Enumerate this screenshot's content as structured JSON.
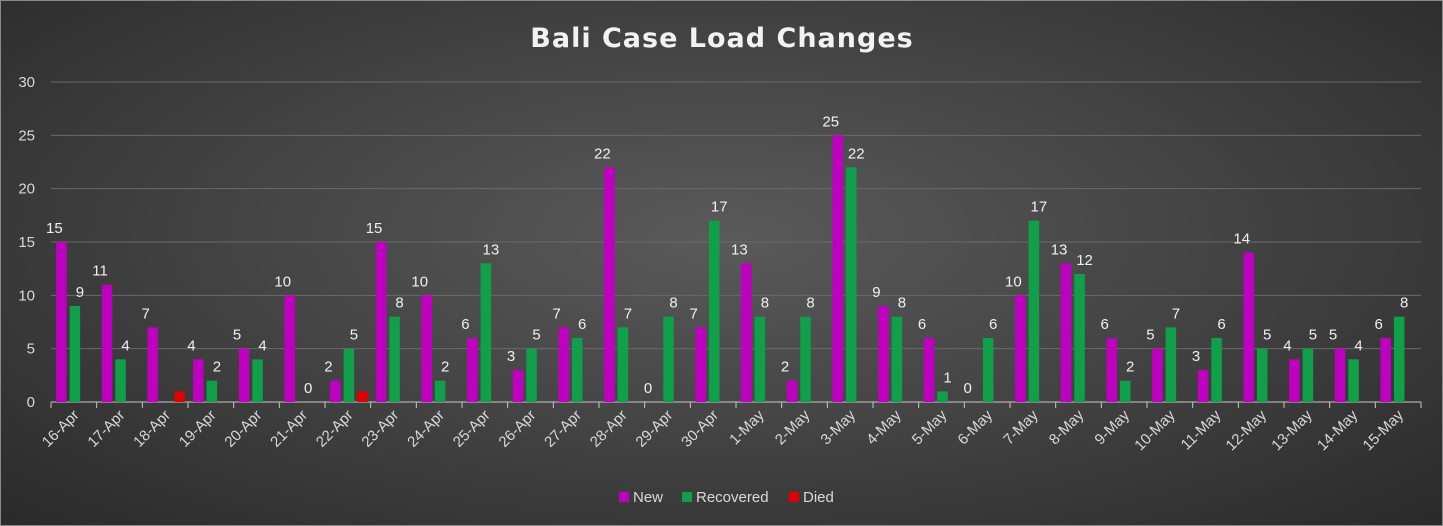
{
  "chart_data": {
    "type": "bar",
    "title": "Bali Case Load Changes",
    "xlabel": "",
    "ylabel": "",
    "ylim": [
      0,
      30
    ],
    "yticks": [
      0,
      5,
      10,
      15,
      20,
      25,
      30
    ],
    "grid": true,
    "legend_position": "bottom",
    "categories": [
      "16-Apr",
      "17-Apr",
      "18-Apr",
      "19-Apr",
      "20-Apr",
      "21-Apr",
      "22-Apr",
      "23-Apr",
      "24-Apr",
      "25-Apr",
      "26-Apr",
      "27-Apr",
      "28-Apr",
      "29-Apr",
      "30-Apr",
      "1-May",
      "2-May",
      "3-May",
      "4-May",
      "5-May",
      "6-May",
      "7-May",
      "8-May",
      "9-May",
      "10-May",
      "11-May",
      "12-May",
      "13-May",
      "14-May",
      "15-May"
    ],
    "series": [
      {
        "name": "New",
        "color": "#c000c0",
        "values": [
          15,
          11,
          7,
          4,
          5,
          10,
          2,
          15,
          10,
          6,
          3,
          7,
          22,
          0,
          7,
          13,
          2,
          25,
          9,
          6,
          0,
          10,
          13,
          6,
          5,
          3,
          14,
          4,
          5,
          6
        ],
        "labeled": [
          true,
          true,
          true,
          true,
          true,
          true,
          true,
          true,
          true,
          true,
          true,
          true,
          true,
          true,
          true,
          true,
          true,
          true,
          true,
          true,
          true,
          true,
          true,
          true,
          true,
          true,
          true,
          true,
          true,
          true
        ]
      },
      {
        "name": "Recovered",
        "color": "#10a04a",
        "values": [
          9,
          4,
          0,
          2,
          4,
          0,
          5,
          8,
          2,
          13,
          5,
          6,
          7,
          8,
          17,
          8,
          8,
          22,
          8,
          1,
          6,
          17,
          12,
          2,
          7,
          6,
          5,
          5,
          4,
          8
        ],
        "labeled": [
          true,
          true,
          false,
          true,
          true,
          true,
          true,
          true,
          true,
          true,
          true,
          true,
          true,
          true,
          true,
          true,
          true,
          true,
          true,
          true,
          true,
          true,
          true,
          true,
          true,
          true,
          true,
          true,
          true,
          true
        ]
      },
      {
        "name": "Died",
        "color": "#e00000",
        "values": [
          0,
          0,
          1,
          0,
          0,
          0,
          1,
          0,
          0,
          0,
          0,
          0,
          0,
          0,
          0,
          0,
          0,
          0,
          0,
          0,
          0,
          0,
          0,
          0,
          0,
          0,
          0,
          0,
          0,
          0
        ],
        "labeled": [
          false,
          false,
          false,
          false,
          false,
          false,
          false,
          false,
          false,
          false,
          false,
          false,
          false,
          false,
          false,
          false,
          false,
          false,
          false,
          false,
          false,
          false,
          false,
          false,
          false,
          false,
          false,
          false,
          false,
          false
        ]
      }
    ]
  }
}
